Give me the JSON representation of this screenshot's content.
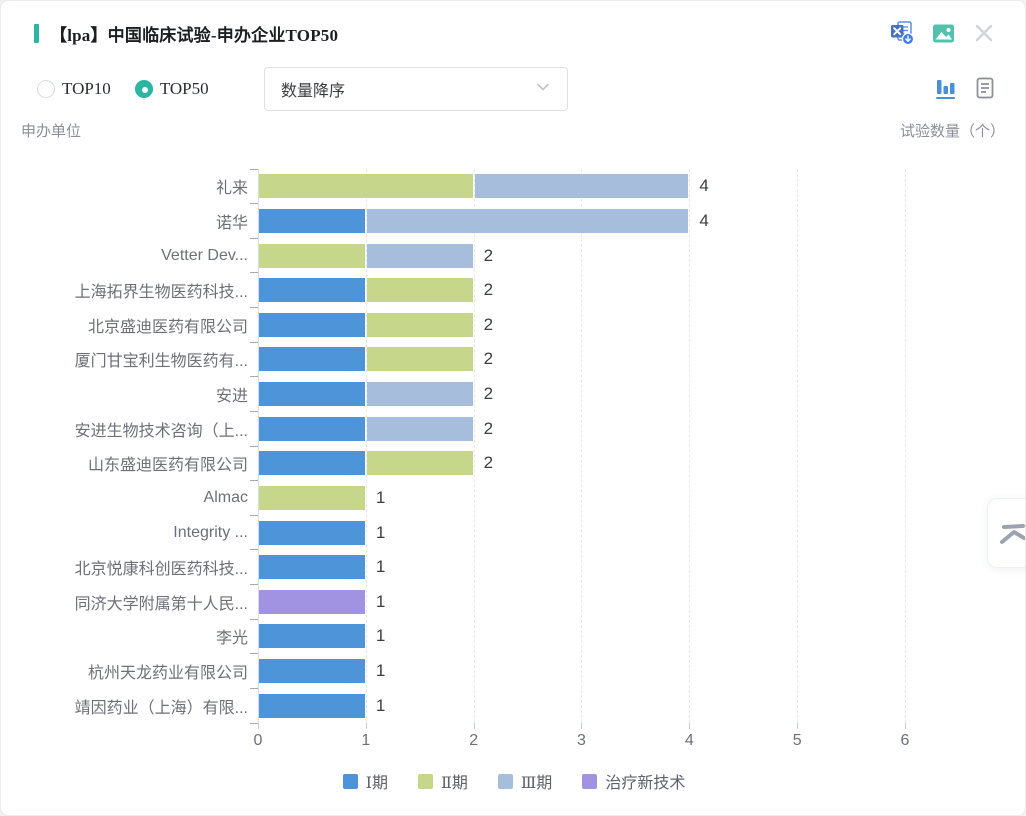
{
  "colors": {
    "accent_teal": "#2cb5a3",
    "excel_icon_blue": "#4472c4",
    "image_icon_teal": "#53c1ae",
    "close_icon_gray": "#d2d4d7",
    "active_view_blue": "#4a90d9",
    "inactive_view_gray": "#8a8f99",
    "axis_gray": "#6e7079"
  },
  "header": {
    "title": "【lpa】中国临床试验-申办企业TOP50",
    "icons": [
      "excel-download-icon",
      "image-export-icon",
      "close-icon"
    ]
  },
  "controls": {
    "radios": [
      {
        "label": "TOP10",
        "selected": false
      },
      {
        "label": "TOP50",
        "selected": true
      }
    ],
    "sort": {
      "value": "数量降序"
    },
    "view_toggle": [
      {
        "name": "bar-chart-view",
        "active": true
      },
      {
        "name": "list-view",
        "active": false
      }
    ]
  },
  "floating_button": {
    "name": "collapse-panel"
  },
  "chart_data": {
    "type": "bar",
    "orientation": "horizontal",
    "stacked": true,
    "title": "【lpa】中国临床试验-申办企业TOP50",
    "xlabel": "试验数量（个）",
    "ylabel": "申办单位",
    "xlim": [
      0,
      6
    ],
    "x_ticks": [
      "0",
      "1",
      "2",
      "3",
      "4",
      "5",
      "6"
    ],
    "grid": "vertical-dashed",
    "legend_position": "bottom",
    "categories": [
      "礼来",
      "诺华",
      "Vetter Dev...",
      "上海拓界生物医药科技...",
      "北京盛迪医药有限公司",
      "厦门甘宝利生物医药有...",
      "安进",
      "安进生物技术咨询（上...",
      "山东盛迪医药有限公司",
      "Almac",
      "Integrity ...",
      "北京悦康科创医药科技...",
      "同济大学附属第十人民...",
      "李光",
      "杭州天龙药业有限公司",
      "靖因药业（上海）有限..."
    ],
    "series": [
      {
        "name": "Ⅰ期",
        "key": "phase-1",
        "color": "#4d94d9",
        "values": [
          0,
          1,
          0,
          1,
          1,
          1,
          1,
          1,
          1,
          0,
          1,
          1,
          0,
          1,
          1,
          1
        ]
      },
      {
        "name": "Ⅱ期",
        "key": "phase-2",
        "color": "#c6d68a",
        "values": [
          2,
          0,
          1,
          1,
          1,
          1,
          0,
          0,
          1,
          1,
          0,
          0,
          0,
          0,
          0,
          0
        ]
      },
      {
        "name": "Ⅲ期",
        "key": "phase-3",
        "color": "#a6bedc",
        "values": [
          2,
          3,
          1,
          0,
          0,
          0,
          1,
          1,
          0,
          0,
          0,
          0,
          0,
          0,
          0,
          0
        ]
      },
      {
        "name": "治疗新技术",
        "key": "new-tech",
        "color": "#a292e2",
        "values": [
          0,
          0,
          0,
          0,
          0,
          0,
          0,
          0,
          0,
          0,
          0,
          0,
          1,
          0,
          0,
          0
        ]
      }
    ],
    "totals": [
      4,
      4,
      2,
      2,
      2,
      2,
      2,
      2,
      2,
      1,
      1,
      1,
      1,
      1,
      1,
      1
    ]
  }
}
